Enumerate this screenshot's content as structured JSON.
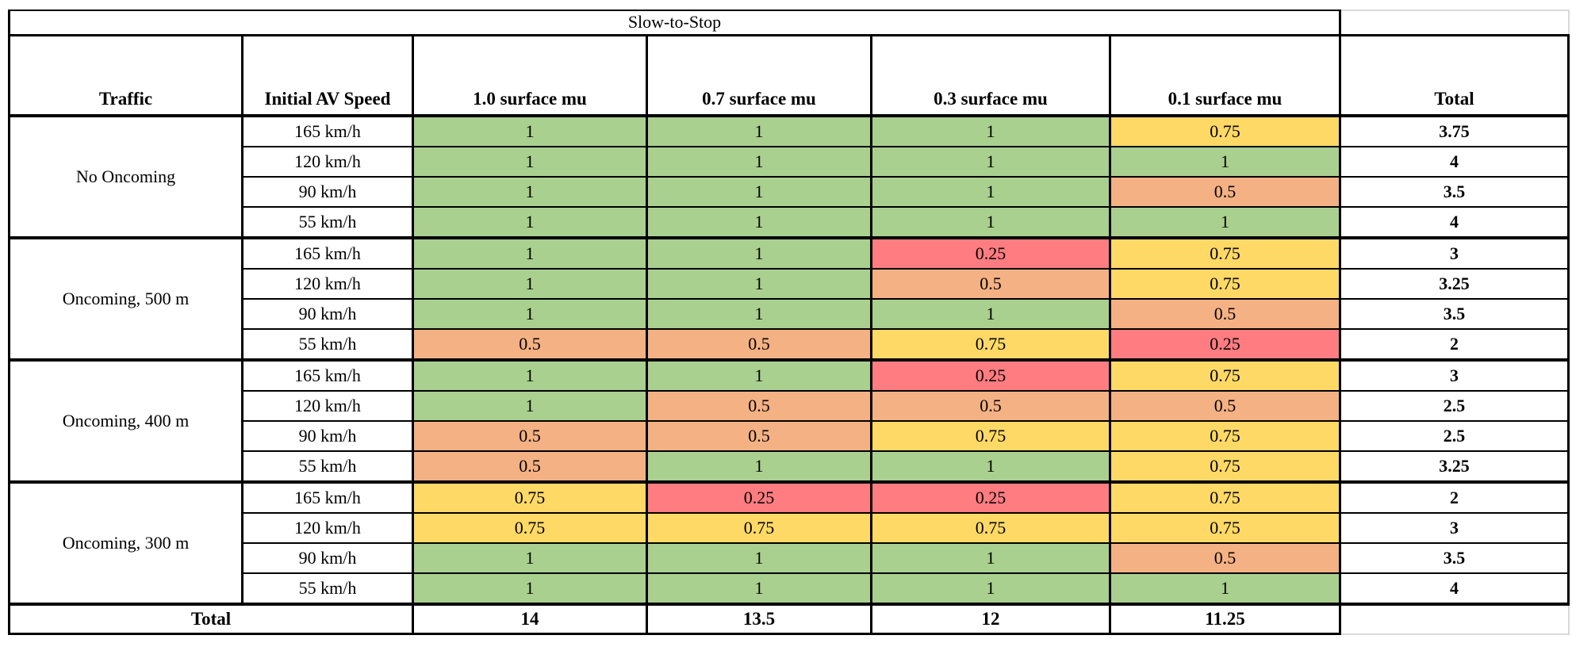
{
  "colors": {
    "background": "#ffffff",
    "border": "#000000",
    "faint_gridline": "#d9d9d9",
    "score_green": "#A9D08E",
    "score_yellow": "#FFD966",
    "score_orange": "#F4B183",
    "score_red": "#FF7C80"
  },
  "chart_data": {
    "type": "table",
    "title": "Slow-to-Stop",
    "columns": [
      "Traffic",
      "Initial AV Speed",
      "1.0 surface mu",
      "0.7 surface mu",
      "0.3 surface mu",
      "0.1 surface mu",
      "Total"
    ],
    "score_colors": {
      "1": "#A9D08E",
      "0.75": "#FFD966",
      "0.5": "#F4B183",
      "0.25": "#FF7C80"
    },
    "row_groups": [
      {
        "traffic": "No Oncoming",
        "rows": [
          {
            "speed": "165 km/h",
            "values": [
              "1",
              "1",
              "1",
              "0.75"
            ],
            "total": "3.75"
          },
          {
            "speed": "120 km/h",
            "values": [
              "1",
              "1",
              "1",
              "1"
            ],
            "total": "4"
          },
          {
            "speed": "90 km/h",
            "values": [
              "1",
              "1",
              "1",
              "0.5"
            ],
            "total": "3.5"
          },
          {
            "speed": "55 km/h",
            "values": [
              "1",
              "1",
              "1",
              "1"
            ],
            "total": "4"
          }
        ]
      },
      {
        "traffic": "Oncoming, 500 m",
        "rows": [
          {
            "speed": "165 km/h",
            "values": [
              "1",
              "1",
              "0.25",
              "0.75"
            ],
            "total": "3"
          },
          {
            "speed": "120 km/h",
            "values": [
              "1",
              "1",
              "0.5",
              "0.75"
            ],
            "total": "3.25"
          },
          {
            "speed": "90 km/h",
            "values": [
              "1",
              "1",
              "1",
              "0.5"
            ],
            "total": "3.5"
          },
          {
            "speed": "55 km/h",
            "values": [
              "0.5",
              "0.5",
              "0.75",
              "0.25"
            ],
            "total": "2"
          }
        ]
      },
      {
        "traffic": "Oncoming, 400 m",
        "rows": [
          {
            "speed": "165 km/h",
            "values": [
              "1",
              "1",
              "0.25",
              "0.75"
            ],
            "total": "3"
          },
          {
            "speed": "120 km/h",
            "values": [
              "1",
              "0.5",
              "0.5",
              "0.5"
            ],
            "total": "2.5"
          },
          {
            "speed": "90 km/h",
            "values": [
              "0.5",
              "0.5",
              "0.75",
              "0.75"
            ],
            "total": "2.5"
          },
          {
            "speed": "55 km/h",
            "values": [
              "0.5",
              "1",
              "1",
              "0.75"
            ],
            "total": "3.25"
          }
        ]
      },
      {
        "traffic": "Oncoming, 300 m",
        "rows": [
          {
            "speed": "165 km/h",
            "values": [
              "0.75",
              "0.25",
              "0.25",
              "0.75"
            ],
            "total": "2"
          },
          {
            "speed": "120 km/h",
            "values": [
              "0.75",
              "0.75",
              "0.75",
              "0.75"
            ],
            "total": "3"
          },
          {
            "speed": "90 km/h",
            "values": [
              "1",
              "1",
              "1",
              "0.5"
            ],
            "total": "3.5"
          },
          {
            "speed": "55 km/h",
            "values": [
              "1",
              "1",
              "1",
              "1"
            ],
            "total": "4"
          }
        ]
      }
    ],
    "footer": {
      "label": "Total",
      "column_totals": [
        "14",
        "13.5",
        "12",
        "11.25"
      ]
    }
  }
}
